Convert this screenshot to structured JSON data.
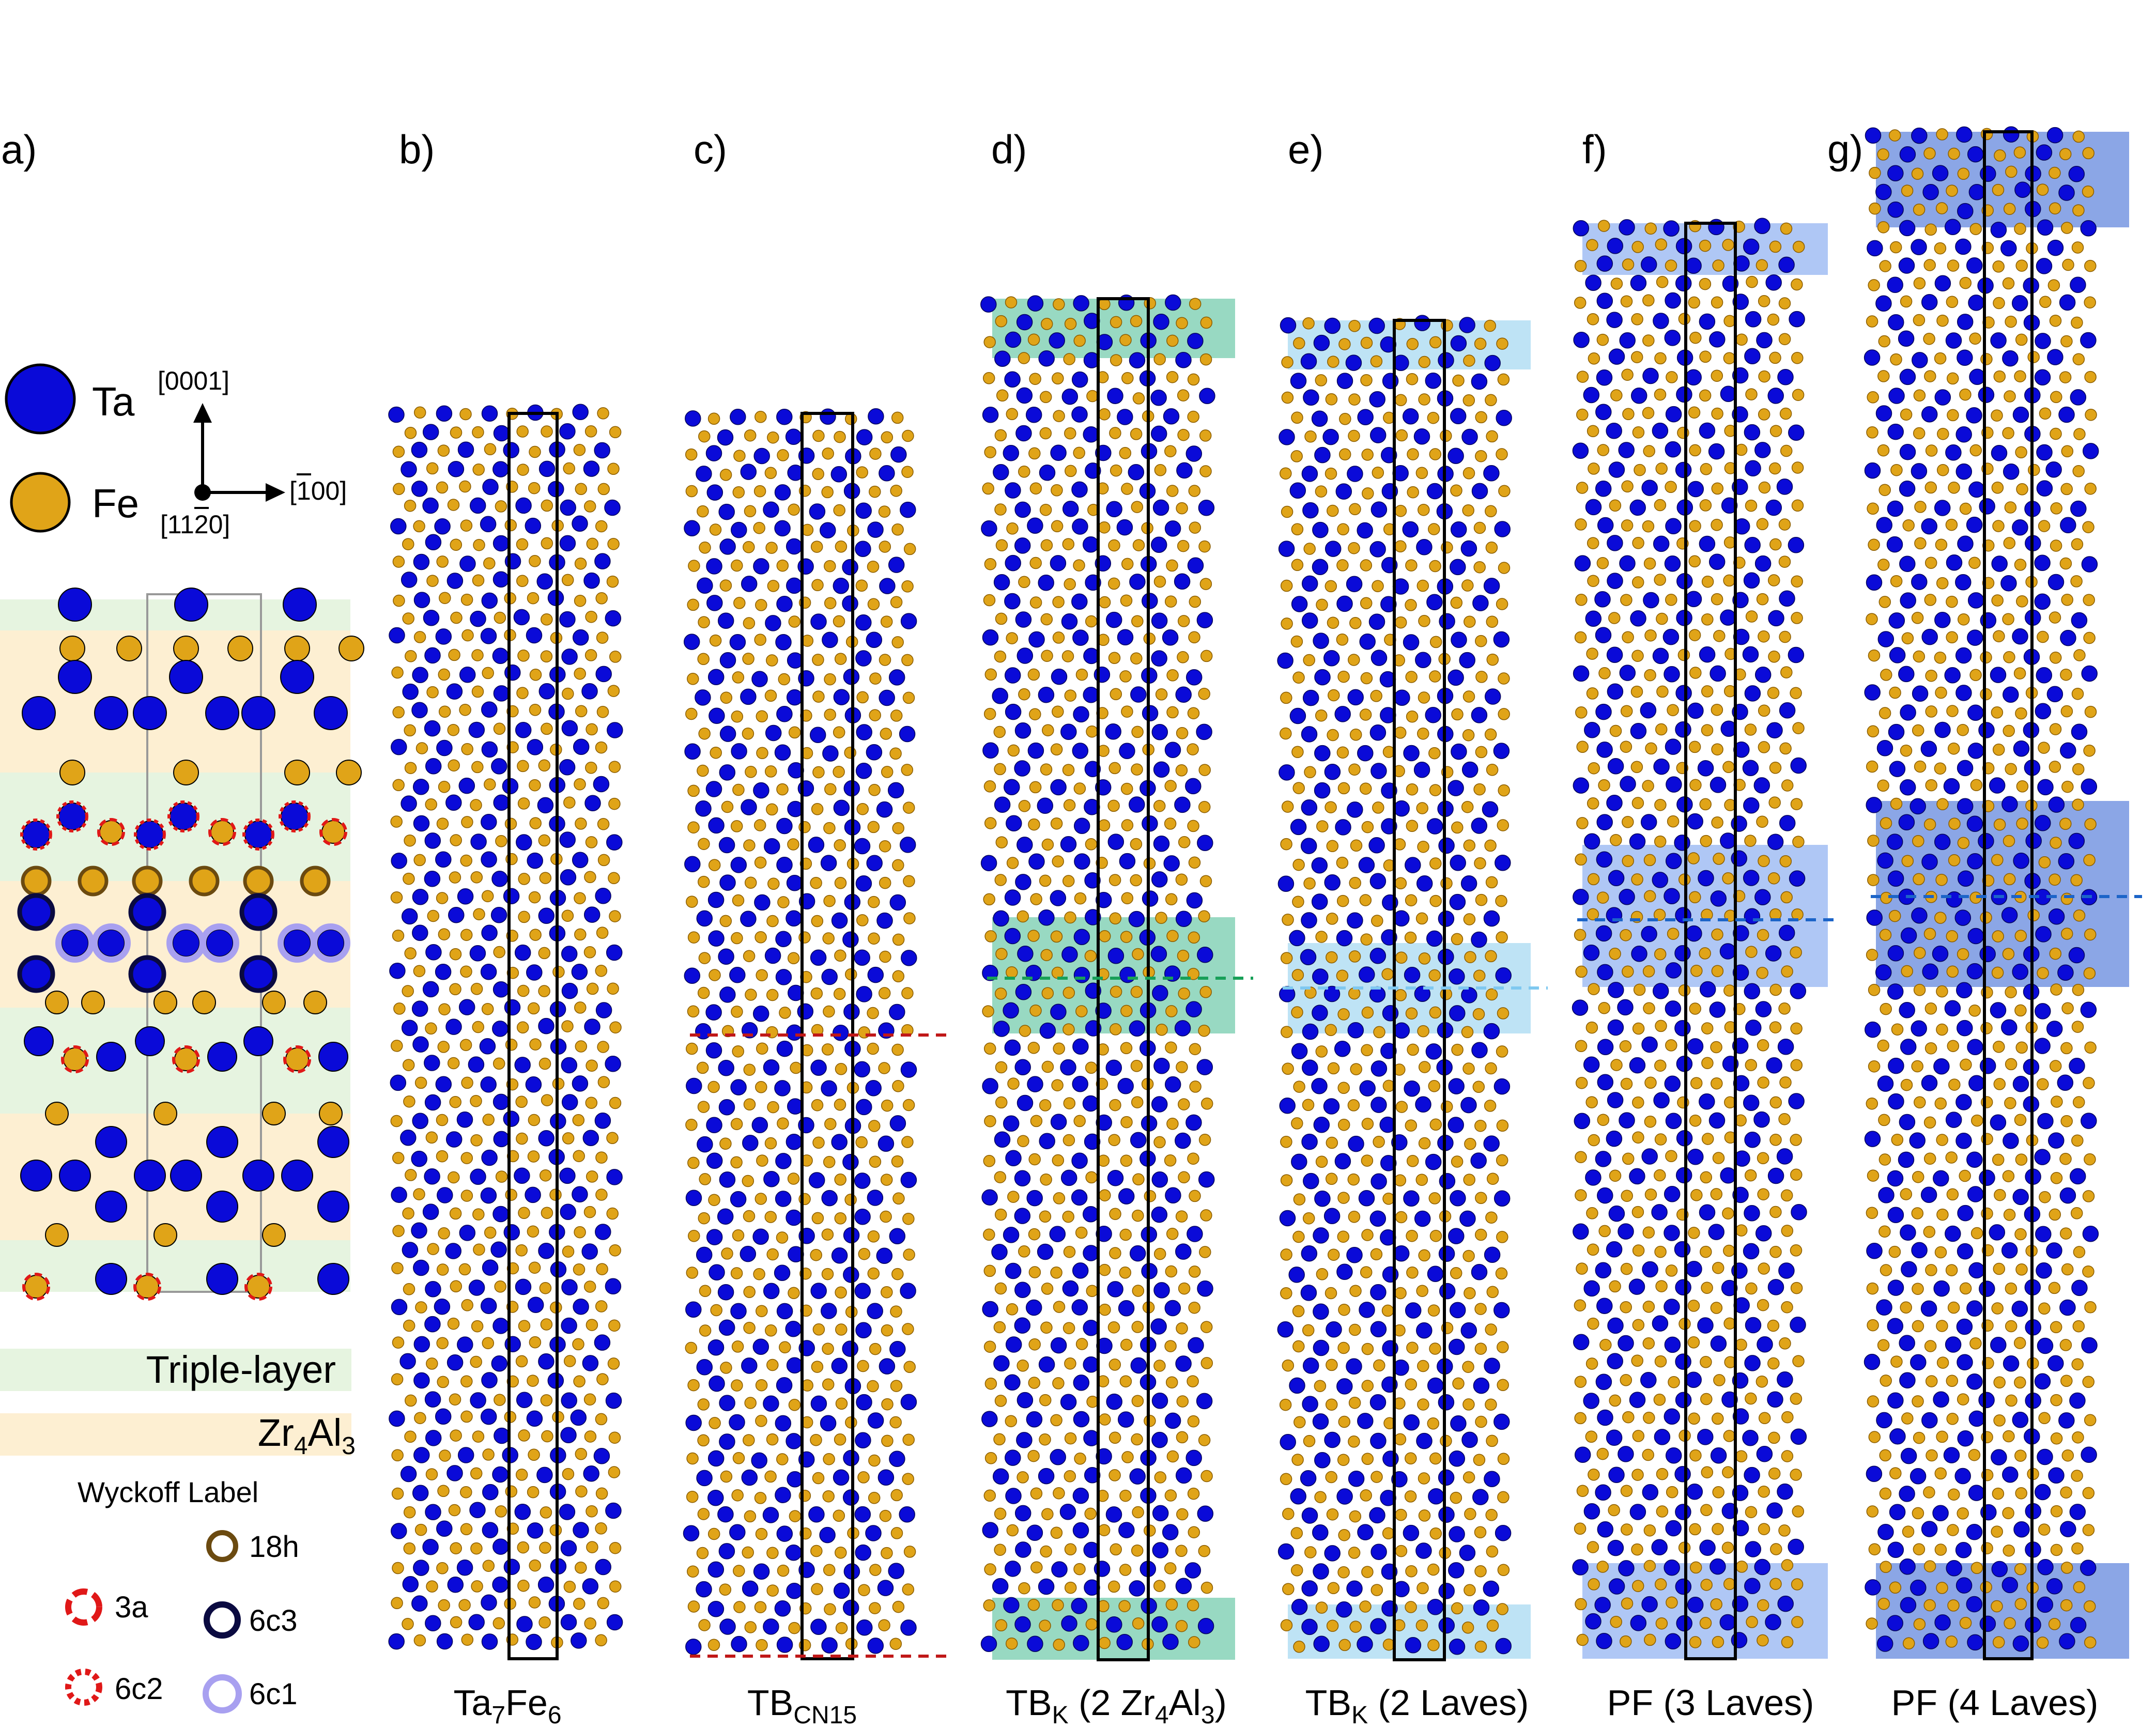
{
  "panel_labels": {
    "a": "a)",
    "b": "b)",
    "c": "c)",
    "d": "d)",
    "e": "e)",
    "f": "f)",
    "g": "g)"
  },
  "legend": {
    "ta": "Ta",
    "fe": "Fe",
    "ta_color": "#0a0ad8",
    "fe_color": "#e0a418"
  },
  "directions": {
    "up": "[0001]",
    "right": "[1100]",
    "right_bar": "1",
    "viewing": "[1120]",
    "viewing_bar": "2"
  },
  "bands": {
    "triple_layer": "Triple-layer",
    "zr4al3_main": "Zr",
    "zr4al3_sub1": "4",
    "zr4al3_mid": "Al",
    "zr4al3_sub2": "3"
  },
  "wyckoff": {
    "title": "Wyckoff Label",
    "w18h": "18h",
    "w3a": "3a",
    "w6c3": "6c3",
    "w6c2": "6c2",
    "w6c1": "6c1"
  },
  "captions": {
    "b_main": "Ta",
    "b_s1": "7",
    "b_mid": "Fe",
    "b_s2": "6",
    "c_main": "TB",
    "c_sub": "CN15",
    "d_main": "TB",
    "d_sub": "K",
    "d_rest": " (2 Zr",
    "d_s2": "4",
    "d_mid": "Al",
    "d_s3": "3",
    "d_end": ")",
    "e_main": "TB",
    "e_sub": "K",
    "e_rest": " (2 Laves)",
    "f_main": "PF (3 Laves)",
    "g_main": "PF (4 Laves)"
  }
}
